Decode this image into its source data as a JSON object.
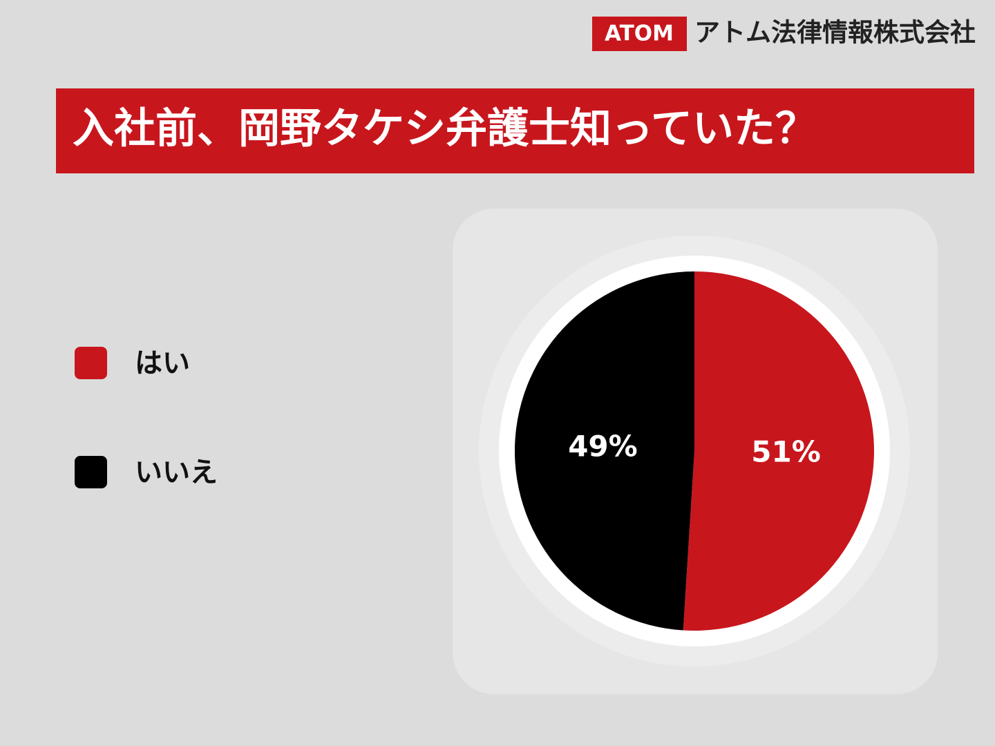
{
  "header": {
    "logo": "ATOM",
    "company": "アトム法律情報株式会社"
  },
  "chart_data": {
    "type": "pie",
    "title": "入社前、岡野タケシ弁護士知っていた？",
    "categories": [
      "はい",
      "いいえ"
    ],
    "values": [
      51,
      49
    ],
    "value_labels": [
      "51%",
      "49%"
    ],
    "colors": [
      "#c8161d",
      "#000000"
    ],
    "legend": "left"
  }
}
